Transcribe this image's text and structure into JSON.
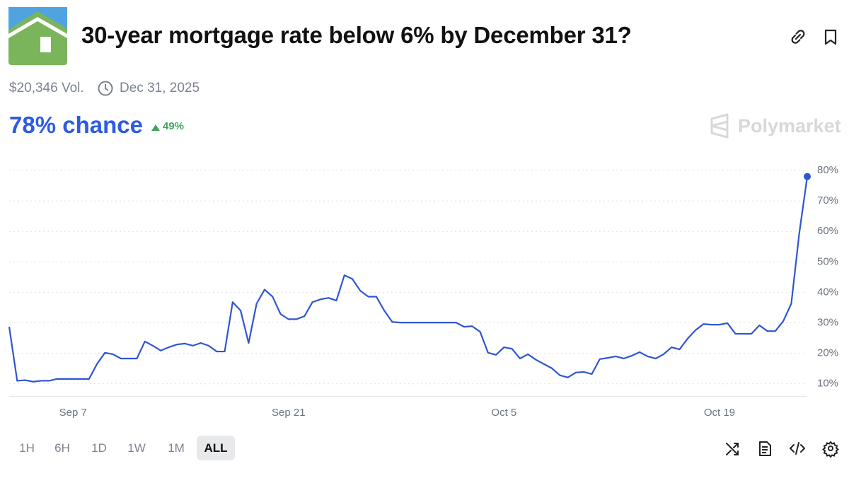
{
  "header": {
    "title": "30-year mortgage rate below 6% by December 31?",
    "volume": "$20,346 Vol.",
    "end_date": "Dec 31, 2025"
  },
  "odds": {
    "chance": "78% chance",
    "change": "49%"
  },
  "brand": "Polymarket",
  "timeframes": [
    "1H",
    "6H",
    "1D",
    "1W",
    "1M",
    "ALL"
  ],
  "chart_data": {
    "type": "line",
    "color": "#2f55d4",
    "grid": true,
    "ylim": [
      6,
      80
    ],
    "yticks": [
      {
        "value": 10,
        "label": "10%"
      },
      {
        "value": 20,
        "label": "20%"
      },
      {
        "value": 30,
        "label": "30%"
      },
      {
        "value": 40,
        "label": "40%"
      },
      {
        "value": 50,
        "label": "50%"
      },
      {
        "value": 60,
        "label": "60%"
      },
      {
        "value": 70,
        "label": "70%"
      },
      {
        "value": 80,
        "label": "80%"
      }
    ],
    "categories": [
      null,
      null,
      null,
      null,
      null,
      null,
      null,
      null,
      "Sep 7",
      null,
      null,
      null,
      null,
      null,
      null,
      null,
      null,
      null,
      null,
      null,
      null,
      null,
      null,
      null,
      null,
      null,
      null,
      null,
      null,
      null,
      null,
      null,
      null,
      null,
      null,
      "Sep 21",
      null,
      null,
      null,
      null,
      null,
      null,
      null,
      null,
      null,
      null,
      null,
      null,
      null,
      null,
      null,
      null,
      null,
      null,
      null,
      null,
      null,
      null,
      null,
      null,
      null,
      null,
      "Oct 5",
      null,
      null,
      null,
      null,
      null,
      null,
      null,
      null,
      null,
      null,
      null,
      null,
      null,
      null,
      null,
      null,
      null,
      null,
      null,
      null,
      null,
      null,
      null,
      null,
      null,
      null,
      "Oct 19",
      null,
      null,
      null,
      null,
      null,
      null,
      null,
      null,
      null,
      null,
      null
    ],
    "values": [
      28.7,
      11,
      11.2,
      10.7,
      11,
      11,
      11.6,
      11.6,
      11.6,
      11.6,
      11.6,
      16.5,
      20.2,
      19.7,
      18.3,
      18.3,
      18.3,
      23.9,
      22.5,
      20.9,
      22,
      22.9,
      23.2,
      22.5,
      23.4,
      22.5,
      20.6,
      20.6,
      36.8,
      34,
      23.4,
      36.3,
      40.9,
      38.6,
      32.9,
      31.2,
      31.2,
      32.2,
      36.8,
      37.7,
      38.2,
      37.3,
      45.6,
      44.4,
      40.5,
      38.6,
      38.6,
      34,
      30.3,
      30.1,
      30.1,
      30.1,
      30.1,
      30.1,
      30.1,
      30.1,
      30.1,
      28.7,
      28.9,
      27.1,
      20.2,
      19.5,
      22,
      21.5,
      18.3,
      19.7,
      17.9,
      16.5,
      15.1,
      12.8,
      12.1,
      13.7,
      13.9,
      13.2,
      18.1,
      18.5,
      19,
      18.3,
      19.2,
      20.4,
      19,
      18.3,
      19.7,
      22,
      21.3,
      24.8,
      27.6,
      29.6,
      29.4,
      29.4,
      29.9,
      26.4,
      26.4,
      26.4,
      29.2,
      27.3,
      27.3,
      30.6,
      36.3,
      59.4,
      78
    ]
  }
}
